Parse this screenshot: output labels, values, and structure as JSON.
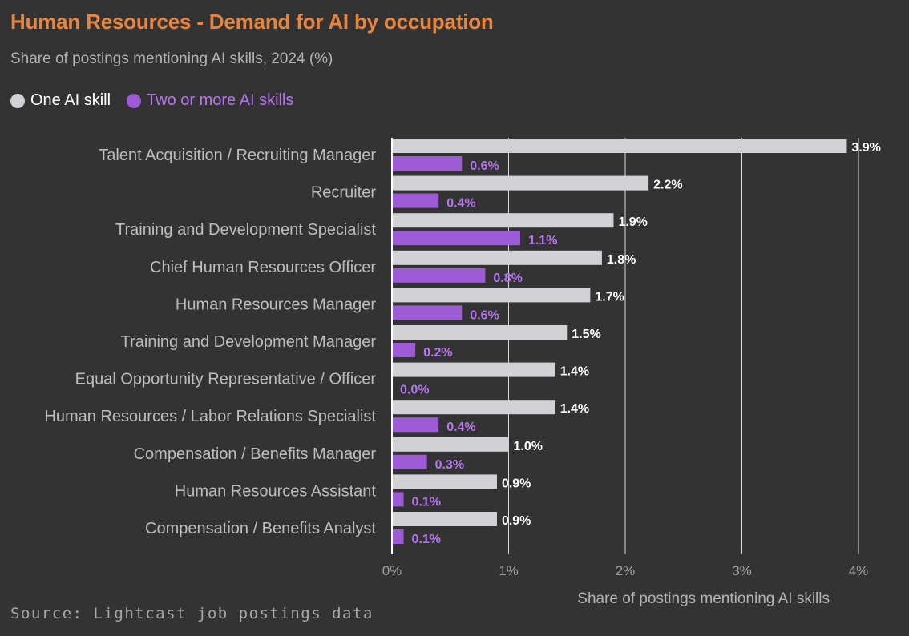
{
  "title": "Human Resources - Demand for AI by occupation",
  "subtitle": "Share of postings mentioning AI skills, 2024 (%)",
  "source": "Source: Lightcast job postings data",
  "colors": {
    "title": "#e8853d",
    "one_skill": "#d2d2d6",
    "two_plus": "#9e5bd6",
    "background": "#333333"
  },
  "legend": [
    {
      "label": "One AI skill",
      "color": "#d2d2d6"
    },
    {
      "label": "Two or more AI skills",
      "color": "#9e5bd6"
    }
  ],
  "chart_data": {
    "type": "bar",
    "orientation": "horizontal",
    "categories": [
      "Talent Acquisition / Recruiting Manager",
      "Recruiter",
      "Training and Development Specialist",
      "Chief Human Resources Officer",
      "Human Resources Manager",
      "Training and Development Manager",
      "Equal Opportunity Representative / Officer",
      "Human Resources / Labor Relations Specialist",
      "Compensation / Benefits Manager",
      "Human Resources Assistant",
      "Compensation / Benefits Analyst"
    ],
    "series": [
      {
        "name": "One AI skill",
        "values": [
          3.9,
          2.2,
          1.9,
          1.8,
          1.7,
          1.5,
          1.4,
          1.4,
          1.0,
          0.9,
          0.9
        ],
        "labels": [
          "3.9%",
          "2.2%",
          "1.9%",
          "1.8%",
          "1.7%",
          "1.5%",
          "1.4%",
          "1.4%",
          "1.0%",
          "0.9%",
          "0.9%"
        ]
      },
      {
        "name": "Two or more AI skills",
        "values": [
          0.6,
          0.4,
          1.1,
          0.8,
          0.6,
          0.2,
          0.0,
          0.4,
          0.3,
          0.1,
          0.1
        ],
        "labels": [
          "0.6%",
          "0.4%",
          "1.1%",
          "0.8%",
          "0.6%",
          "0.2%",
          "0.0%",
          "0.4%",
          "0.3%",
          "0.1%",
          "0.1%"
        ]
      }
    ],
    "xlabel": "Share of postings mentioning AI skills",
    "xlim": [
      0,
      4
    ],
    "xticks": [
      0,
      1,
      2,
      3,
      4
    ],
    "xtick_labels": [
      "0%",
      "1%",
      "2%",
      "3%",
      "4%"
    ],
    "grid": true,
    "legend_position": "top-left"
  }
}
